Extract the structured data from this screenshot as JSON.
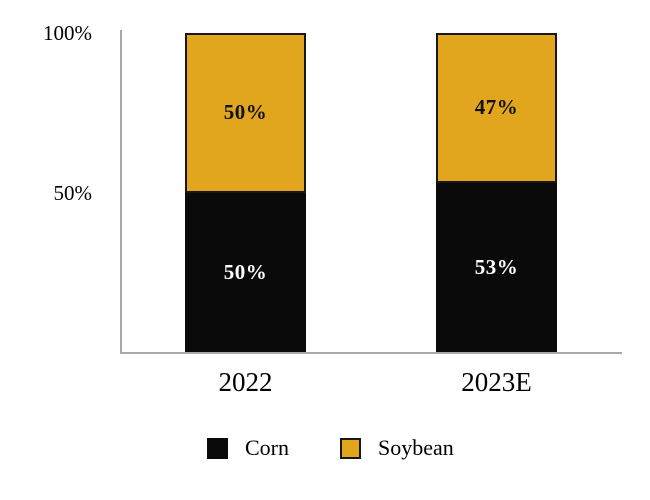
{
  "chart_data": {
    "type": "bar",
    "subtype": "stacked-100-percent",
    "title": "",
    "categories": [
      "2022",
      "2023E"
    ],
    "series": [
      {
        "name": "Corn",
        "color": "#0a0a0a",
        "label_color": "#ffffff",
        "values": [
          50,
          53
        ],
        "labels": [
          "50%",
          "53%"
        ]
      },
      {
        "name": "Soybean",
        "color": "#e2a51e",
        "border_color": "#171717",
        "label_color": "#111111",
        "values": [
          50,
          47
        ],
        "labels": [
          "50%",
          "47%"
        ]
      }
    ],
    "value_suffix": "%",
    "y_axis": {
      "range": [
        0,
        100
      ],
      "ticks": [
        {
          "label": "50%",
          "value": 50
        },
        {
          "label": "100%",
          "value": 100
        }
      ]
    },
    "grid": false,
    "legend_position": "bottom",
    "axis_color": "#a9a9a9"
  }
}
